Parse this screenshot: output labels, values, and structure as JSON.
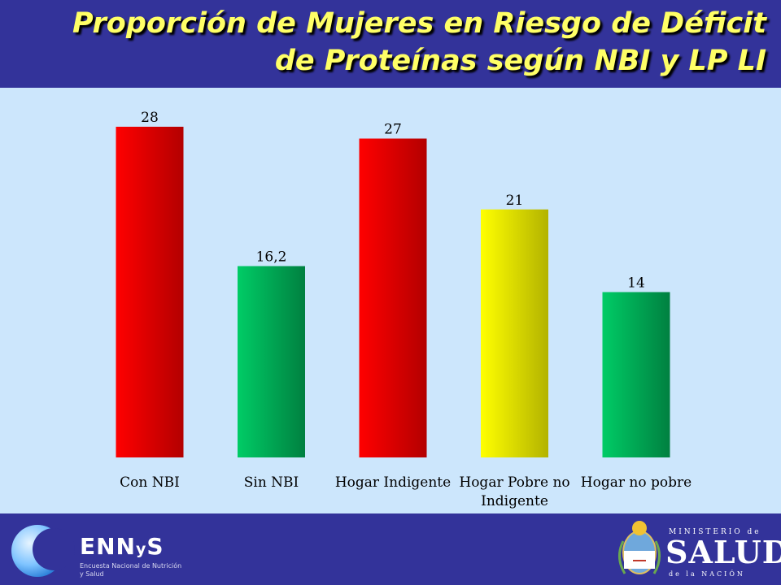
{
  "title": {
    "line1": "Proporción de Mujeres en Riesgo de Déficit",
    "line2": "de Proteínas según NBI y LP LI",
    "color": "#ffff66"
  },
  "chart_data": {
    "type": "bar",
    "categories": [
      "Con NBI",
      "Sin NBI",
      "Hogar Indigente",
      "Hogar Pobre no Indigente",
      "Hogar no pobre"
    ],
    "values": [
      28,
      16.2,
      27,
      21,
      14
    ],
    "value_labels": [
      "28",
      "16,2",
      "27",
      "21",
      "14"
    ],
    "category_lines": [
      [
        "Con NBI"
      ],
      [
        "Sin NBI"
      ],
      [
        "Hogar Indigente"
      ],
      [
        "Hogar Pobre no",
        "Indigente"
      ],
      [
        "Hogar no pobre"
      ]
    ],
    "bar_colors": [
      [
        "#ff0000",
        "#b30000"
      ],
      [
        "#00cc66",
        "#008040"
      ],
      [
        "#ff0000",
        "#b30000"
      ],
      [
        "#ffff00",
        "#b3b300"
      ],
      [
        "#00cc66",
        "#008040"
      ]
    ],
    "ylim": [
      0,
      28
    ],
    "grid": false,
    "legend": "none"
  },
  "footer": {
    "ennys": {
      "name_pre": "ENN",
      "name_y": "y",
      "name_post": "S",
      "subtitle": "Encuesta Nacional de Nutrición y Salud"
    },
    "ministerio": {
      "line1": "MINISTERIO de",
      "word": "SALUD",
      "line3": "de la NACIÓN"
    }
  },
  "colors": {
    "background": "#33339a",
    "plot_area": "#cce6fc"
  }
}
